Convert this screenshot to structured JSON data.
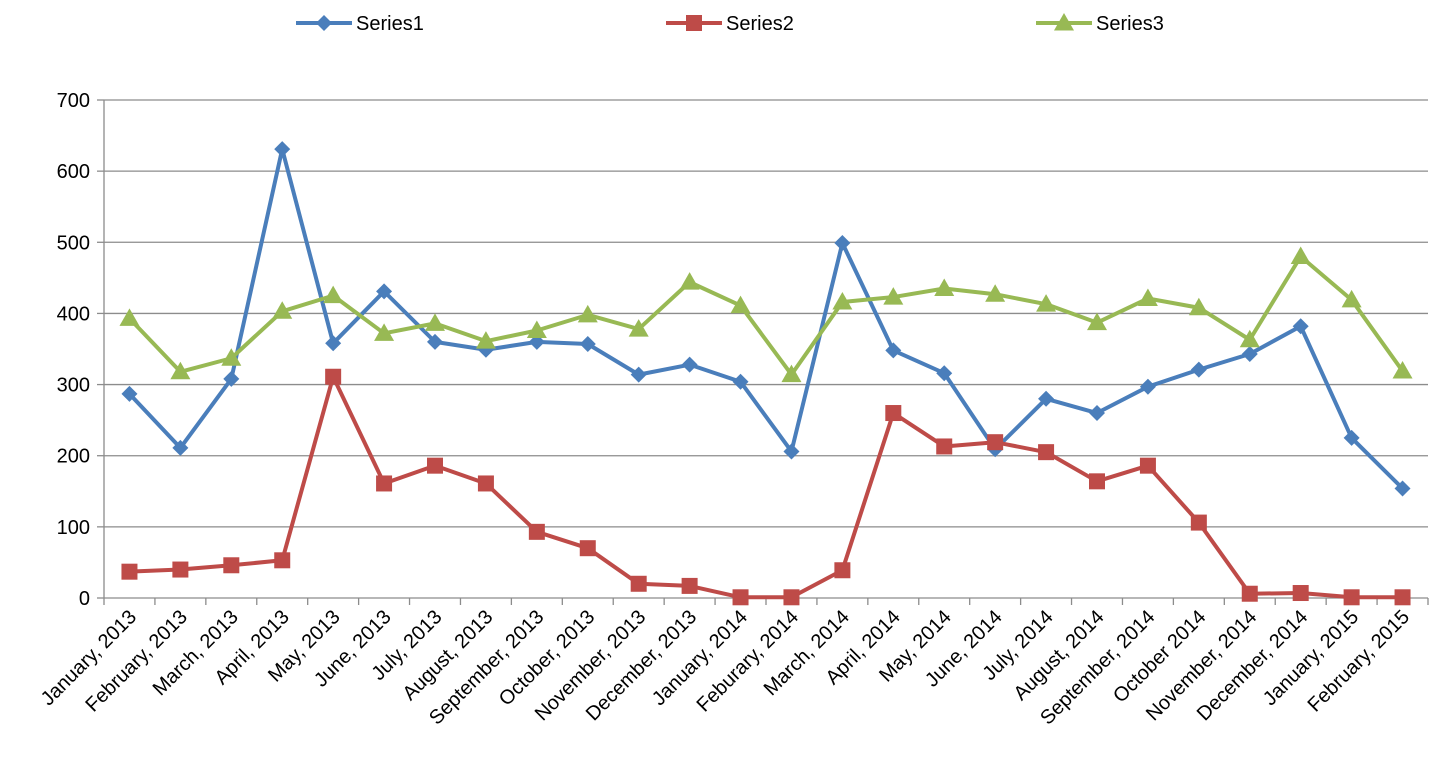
{
  "chart_data": {
    "type": "line",
    "title": "",
    "xlabel": "",
    "ylabel": "",
    "ylim": [
      0,
      700
    ],
    "yticks": [
      0,
      100,
      200,
      300,
      400,
      500,
      600,
      700
    ],
    "grid": true,
    "legend_position": "top",
    "categories": [
      "January, 2013",
      "February, 2013",
      "March, 2013",
      "April, 2013",
      "May, 2013",
      "June, 2013",
      "July, 2013",
      "August, 2013",
      "September, 2013",
      "October, 2013",
      "November, 2013",
      "December, 2013",
      "January, 2014",
      "Feburary, 2014",
      "March, 2014",
      "April, 2014",
      "May, 2014",
      "June, 2014",
      "July, 2014",
      "August, 2014",
      "September, 2014",
      "October 2014",
      "November, 2014",
      "December, 2014",
      "January, 2015",
      "February, 2015"
    ],
    "series": [
      {
        "name": "Series1",
        "color": "#4a7ebb",
        "marker": "diamond",
        "values": [
          287,
          211,
          308,
          631,
          358,
          431,
          360,
          349,
          360,
          357,
          314,
          328,
          304,
          206,
          499,
          348,
          316,
          209,
          280,
          260,
          297,
          321,
          343,
          382,
          225,
          154
        ]
      },
      {
        "name": "Series2",
        "color": "#be4b48",
        "marker": "square",
        "values": [
          37,
          40,
          46,
          53,
          311,
          161,
          186,
          161,
          93,
          70,
          20,
          17,
          1,
          1,
          39,
          260,
          213,
          219,
          205,
          164,
          186,
          106,
          6,
          7,
          1,
          1
        ]
      },
      {
        "name": "Series3",
        "color": "#98b954",
        "marker": "triangle",
        "values": [
          393,
          318,
          337,
          403,
          425,
          372,
          386,
          361,
          376,
          398,
          378,
          444,
          411,
          314,
          416,
          423,
          435,
          427,
          413,
          387,
          421,
          408,
          363,
          480,
          419,
          319
        ]
      }
    ]
  }
}
